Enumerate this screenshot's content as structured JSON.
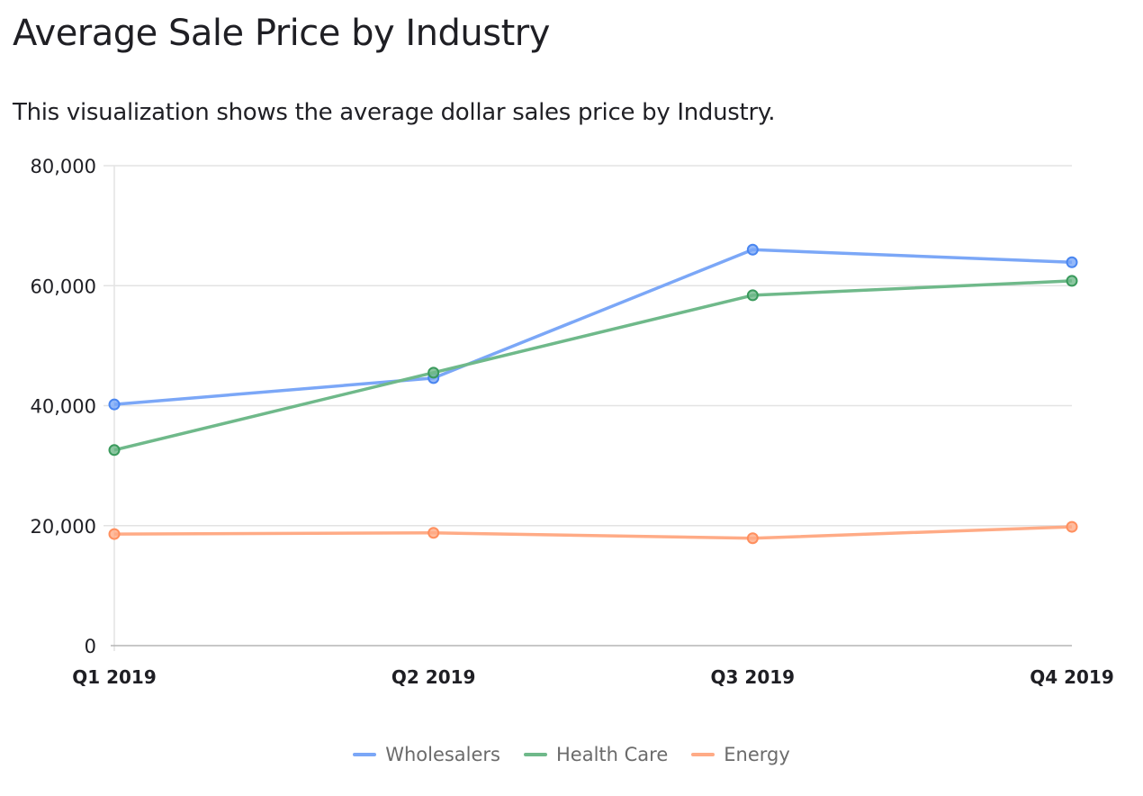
{
  "title": "Average Sale Price by Industry",
  "subtitle": "This visualization shows the average dollar sales price by Industry.",
  "chart_data": {
    "type": "line",
    "categories": [
      "Q1 2019",
      "Q2 2019",
      "Q3 2019",
      "Q4 2019"
    ],
    "series": [
      {
        "name": "Wholesalers",
        "color": "#7ba7f7",
        "marker": "#4a86f0",
        "values": [
          40200,
          44600,
          66000,
          63900
        ]
      },
      {
        "name": "Health Care",
        "color": "#6fb98a",
        "marker": "#3a9a5c",
        "values": [
          32600,
          45500,
          58400,
          60800
        ]
      },
      {
        "name": "Energy",
        "color": "#ffab86",
        "marker": "#ff8f5e",
        "values": [
          18600,
          18800,
          17900,
          19800
        ]
      }
    ],
    "ylim": [
      0,
      80000
    ],
    "yticks": [
      0,
      20000,
      40000,
      60000,
      80000
    ],
    "ytick_labels": [
      "0",
      "20,000",
      "40,000",
      "60,000",
      "80,000"
    ],
    "grid": true,
    "legend_position": "bottom"
  }
}
